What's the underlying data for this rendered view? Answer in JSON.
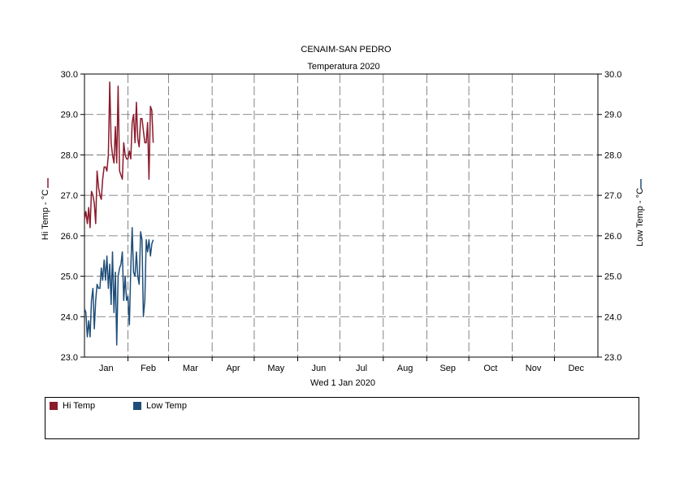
{
  "chart_data": {
    "type": "line",
    "title": "CENAIM-SAN PEDRO",
    "subtitle": "Temperatura 2020",
    "xlabel": "Wed 1 Jan 2020",
    "ylabel_left": "Hi Temp - °C",
    "ylabel_right": "Low Temp - °C",
    "ylim": [
      23.0,
      30.0
    ],
    "y_ticks": [
      "23.0",
      "24.0",
      "25.0",
      "26.0",
      "27.0",
      "28.0",
      "29.0",
      "30.0"
    ],
    "x_tick_labels": [
      "Jan",
      "Feb",
      "Mar",
      "Apr",
      "May",
      "Jun",
      "Jul",
      "Aug",
      "Sep",
      "Oct",
      "Nov",
      "Dec"
    ],
    "grid": true,
    "series": [
      {
        "name": "Hi Temp",
        "color": "#8b1a2b",
        "axis": "left",
        "x": [
          1,
          2,
          3,
          4,
          5,
          6,
          7,
          8,
          9,
          10,
          11,
          12,
          13,
          14,
          15,
          16,
          17,
          18,
          19,
          20,
          21,
          22,
          23,
          24,
          25,
          26,
          27,
          28,
          29,
          30,
          31,
          32,
          33,
          34,
          35,
          36,
          37,
          38,
          39,
          40,
          41,
          42,
          43,
          44,
          45,
          46,
          47,
          48,
          49,
          50
        ],
        "values": [
          26.4,
          26.6,
          26.3,
          26.7,
          26.2,
          27.1,
          27.0,
          26.8,
          26.3,
          27.6,
          27.2,
          27.0,
          26.9,
          27.4,
          27.7,
          27.7,
          27.6,
          28.0,
          29.8,
          28.3,
          28.0,
          27.8,
          28.7,
          27.8,
          29.7,
          27.6,
          27.5,
          27.4,
          28.3,
          28.0,
          27.9,
          27.9,
          28.1,
          27.9,
          28.8,
          29.0,
          28.3,
          29.3,
          28.4,
          28.2,
          28.9,
          28.9,
          28.6,
          28.3,
          28.3,
          28.8,
          27.4,
          29.2,
          29.1,
          28.3
        ]
      },
      {
        "name": "Low Temp",
        "color": "#1f4e79",
        "axis": "right",
        "x": [
          1,
          2,
          3,
          4,
          5,
          6,
          7,
          8,
          9,
          10,
          11,
          12,
          13,
          14,
          15,
          16,
          17,
          18,
          19,
          20,
          21,
          22,
          23,
          24,
          25,
          26,
          27,
          28,
          29,
          30,
          31,
          32,
          33,
          34,
          35,
          36,
          37,
          38,
          39,
          40,
          41,
          42,
          43,
          44,
          45,
          46,
          47,
          48,
          49,
          50
        ],
        "values": [
          24.2,
          24.1,
          23.5,
          23.9,
          23.5,
          24.4,
          24.7,
          23.7,
          24.4,
          24.8,
          24.7,
          24.7,
          25.2,
          24.9,
          25.4,
          24.9,
          25.5,
          24.7,
          25.3,
          24.3,
          25.6,
          24.1,
          25.1,
          23.3,
          25.0,
          25.2,
          25.3,
          25.6,
          24.4,
          25.0,
          24.4,
          24.5,
          23.8,
          25.2,
          26.2,
          25.1,
          25.0,
          25.6,
          25.0,
          24.8,
          26.1,
          25.9,
          24.0,
          24.4,
          25.9,
          25.6,
          25.9,
          25.5,
          25.8,
          25.9
        ]
      }
    ],
    "legend": {
      "placement": "bottom",
      "entries": [
        {
          "label": "Hi Temp",
          "color": "#8b1a2b"
        },
        {
          "label": "Low Temp",
          "color": "#1f4e79"
        }
      ]
    }
  }
}
